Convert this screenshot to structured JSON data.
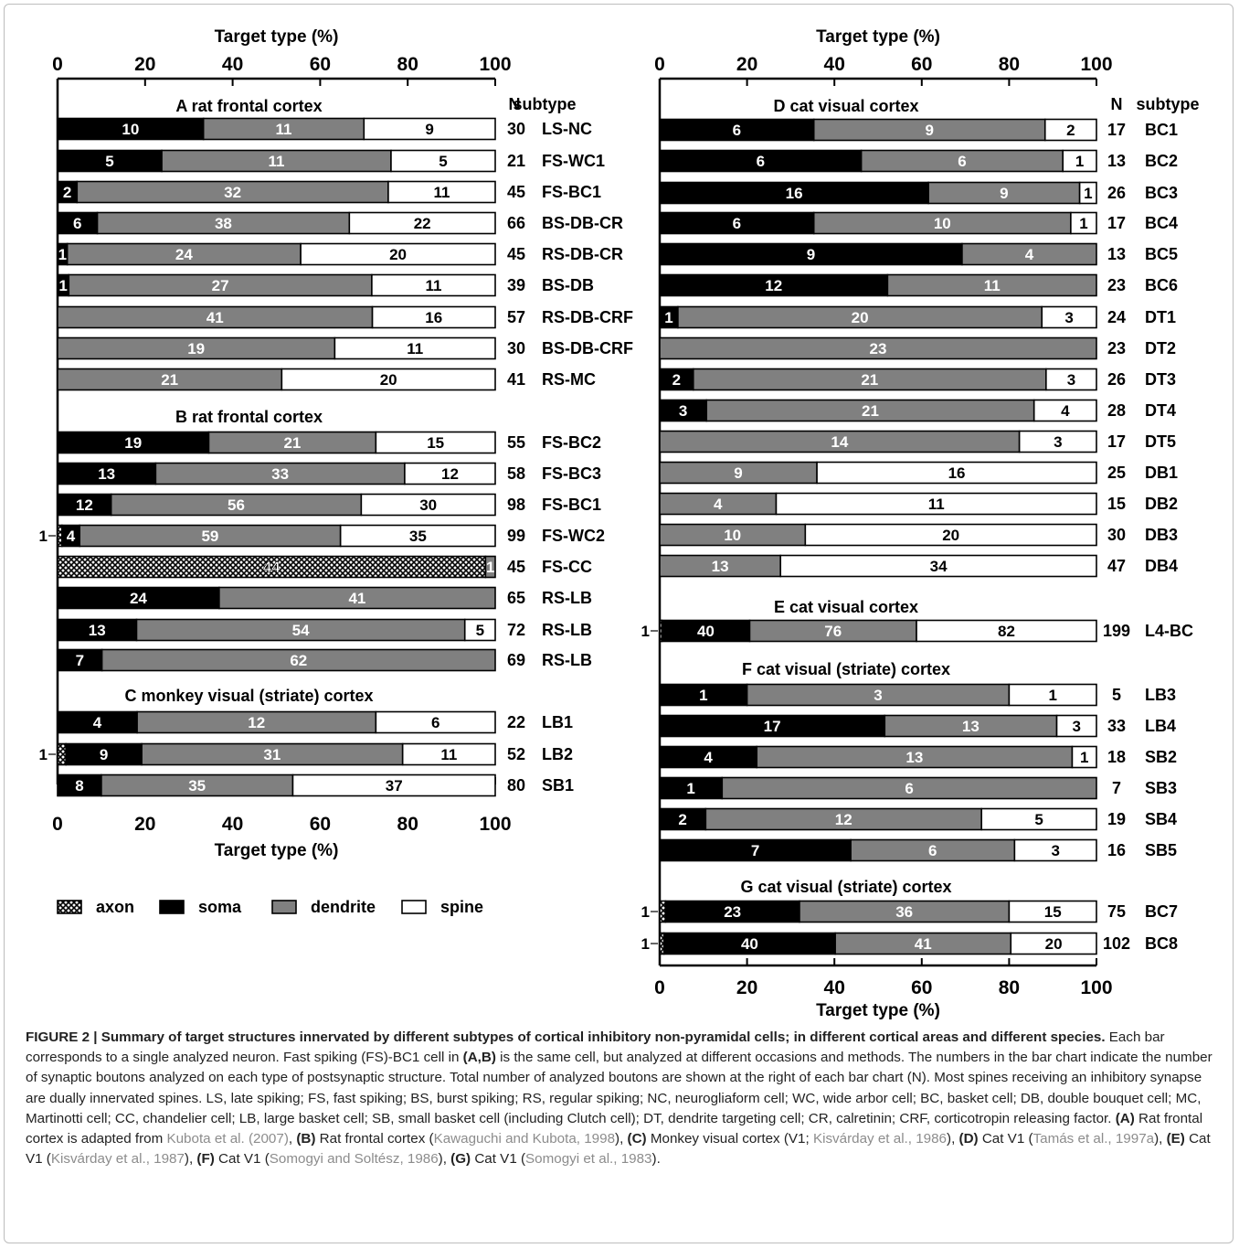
{
  "chart_data": [
    {
      "type": "bar",
      "stacked": true,
      "orientation": "horizontal",
      "xlabel": "Target type (%)",
      "xlim": [
        0,
        100
      ],
      "xticks": [
        0,
        20,
        40,
        60,
        80,
        100
      ],
      "header_n": "N",
      "header_subtype": "subtype",
      "panels": [
        {
          "letter": "A",
          "title": "rat frontal cortex",
          "rows": [
            {
              "subtype": "LS-NC",
              "n": 30,
              "axon": 0,
              "soma": 10,
              "dendrite": 11,
              "spine": 9
            },
            {
              "subtype": "FS-WC1",
              "n": 21,
              "axon": 0,
              "soma": 5,
              "dendrite": 11,
              "spine": 5
            },
            {
              "subtype": "FS-BC1",
              "n": 45,
              "axon": 0,
              "soma": 2,
              "dendrite": 32,
              "spine": 11
            },
            {
              "subtype": "BS-DB-CR",
              "n": 66,
              "axon": 0,
              "soma": 6,
              "dendrite": 38,
              "spine": 22
            },
            {
              "subtype": "RS-DB-CR",
              "n": 45,
              "axon": 0,
              "soma": 1,
              "dendrite": 24,
              "spine": 20
            },
            {
              "subtype": "BS-DB",
              "n": 39,
              "axon": 0,
              "soma": 1,
              "dendrite": 27,
              "spine": 11
            },
            {
              "subtype": "RS-DB-CRF",
              "n": 57,
              "axon": 0,
              "soma": 0,
              "dendrite": 41,
              "spine": 16
            },
            {
              "subtype": "BS-DB-CRF",
              "n": 30,
              "axon": 0,
              "soma": 0,
              "dendrite": 19,
              "spine": 11
            },
            {
              "subtype": "RS-MC",
              "n": 41,
              "axon": 0,
              "soma": 0,
              "dendrite": 21,
              "spine": 20
            }
          ]
        },
        {
          "letter": "B",
          "title": "rat frontal cortex",
          "rows": [
            {
              "subtype": "FS-BC2",
              "n": 55,
              "axon": 0,
              "soma": 19,
              "dendrite": 21,
              "spine": 15
            },
            {
              "subtype": "FS-BC3",
              "n": 58,
              "axon": 0,
              "soma": 13,
              "dendrite": 33,
              "spine": 12
            },
            {
              "subtype": "FS-BC1",
              "n": 98,
              "axon": 0,
              "soma": 12,
              "dendrite": 56,
              "spine": 30
            },
            {
              "subtype": "FS-WC2",
              "n": 99,
              "axon": 1,
              "soma": 4,
              "dendrite": 59,
              "spine": 35,
              "axon_label": "1"
            },
            {
              "subtype": "FS-CC",
              "n": 45,
              "axon": 44,
              "soma": 0,
              "dendrite": 1,
              "spine": 0
            },
            {
              "subtype": "RS-LB",
              "n": 65,
              "axon": 0,
              "soma": 24,
              "dendrite": 41,
              "spine": 0
            },
            {
              "subtype": "RS-LB",
              "n": 72,
              "axon": 0,
              "soma": 13,
              "dendrite": 54,
              "spine": 5
            },
            {
              "subtype": "RS-LB",
              "n": 69,
              "axon": 0,
              "soma": 7,
              "dendrite": 62,
              "spine": 0
            }
          ]
        },
        {
          "letter": "C",
          "title": "monkey visual (striate) cortex",
          "rows": [
            {
              "subtype": "LB1",
              "n": 22,
              "axon": 0,
              "soma": 4,
              "dendrite": 12,
              "spine": 6
            },
            {
              "subtype": "LB2",
              "n": 52,
              "axon": 1,
              "soma": 9,
              "dendrite": 31,
              "spine": 11,
              "axon_label": "1"
            },
            {
              "subtype": "SB1",
              "n": 80,
              "axon": 0,
              "soma": 8,
              "dendrite": 35,
              "spine": 37
            }
          ]
        },
        {
          "letter": "D",
          "title": "cat visual cortex",
          "rows": [
            {
              "subtype": "BC1",
              "n": 17,
              "axon": 0,
              "soma": 6,
              "dendrite": 9,
              "spine": 2
            },
            {
              "subtype": "BC2",
              "n": 13,
              "axon": 0,
              "soma": 6,
              "dendrite": 6,
              "spine": 1
            },
            {
              "subtype": "BC3",
              "n": 26,
              "axon": 0,
              "soma": 16,
              "dendrite": 9,
              "spine": 1
            },
            {
              "subtype": "BC4",
              "n": 17,
              "axon": 0,
              "soma": 6,
              "dendrite": 10,
              "spine": 1
            },
            {
              "subtype": "BC5",
              "n": 13,
              "axon": 0,
              "soma": 9,
              "dendrite": 4,
              "spine": 0
            },
            {
              "subtype": "BC6",
              "n": 23,
              "axon": 0,
              "soma": 12,
              "dendrite": 11,
              "spine": 0
            },
            {
              "subtype": "DT1",
              "n": 24,
              "axon": 0,
              "soma": 1,
              "dendrite": 20,
              "spine": 3
            },
            {
              "subtype": "DT2",
              "n": 23,
              "axon": 0,
              "soma": 0,
              "dendrite": 23,
              "spine": 0
            },
            {
              "subtype": "DT3",
              "n": 26,
              "axon": 0,
              "soma": 2,
              "dendrite": 21,
              "spine": 3
            },
            {
              "subtype": "DT4",
              "n": 28,
              "axon": 0,
              "soma": 3,
              "dendrite": 21,
              "spine": 4
            },
            {
              "subtype": "DT5",
              "n": 17,
              "axon": 0,
              "soma": 0,
              "dendrite": 14,
              "spine": 3
            },
            {
              "subtype": "DB1",
              "n": 25,
              "axon": 0,
              "soma": 0,
              "dendrite": 9,
              "spine": 16
            },
            {
              "subtype": "DB2",
              "n": 15,
              "axon": 0,
              "soma": 0,
              "dendrite": 4,
              "spine": 11
            },
            {
              "subtype": "DB3",
              "n": 30,
              "axon": 0,
              "soma": 0,
              "dendrite": 10,
              "spine": 20
            },
            {
              "subtype": "DB4",
              "n": 47,
              "axon": 0,
              "soma": 0,
              "dendrite": 13,
              "spine": 34
            }
          ]
        },
        {
          "letter": "E",
          "title": "cat visual cortex",
          "rows": [
            {
              "subtype": "L4-BC",
              "n": 199,
              "axon": 1,
              "soma": 40,
              "dendrite": 76,
              "spine": 82,
              "axon_label": "1"
            }
          ]
        },
        {
          "letter": "F",
          "title": "cat visual (striate) cortex",
          "rows": [
            {
              "subtype": "LB3",
              "n": 5,
              "axon": 0,
              "soma": 1,
              "dendrite": 3,
              "spine": 1
            },
            {
              "subtype": "LB4",
              "n": 33,
              "axon": 0,
              "soma": 17,
              "dendrite": 13,
              "spine": 3
            },
            {
              "subtype": "SB2",
              "n": 18,
              "axon": 0,
              "soma": 4,
              "dendrite": 13,
              "spine": 1
            },
            {
              "subtype": "SB3",
              "n": 7,
              "axon": 0,
              "soma": 1,
              "dendrite": 6,
              "spine": 0
            },
            {
              "subtype": "SB4",
              "n": 19,
              "axon": 0,
              "soma": 2,
              "dendrite": 12,
              "spine": 5
            },
            {
              "subtype": "SB5",
              "n": 16,
              "axon": 0,
              "soma": 7,
              "dendrite": 6,
              "spine": 3
            }
          ]
        },
        {
          "letter": "G",
          "title": "cat visual (striate) cortex",
          "rows": [
            {
              "subtype": "BC7",
              "n": 75,
              "axon": 1,
              "soma": 23,
              "dendrite": 36,
              "spine": 15,
              "axon_label": "1"
            },
            {
              "subtype": "BC8",
              "n": 102,
              "axon": 1,
              "soma": 40,
              "dendrite": 41,
              "spine": 20,
              "axon_label": "1"
            }
          ]
        }
      ],
      "legend": [
        {
          "key": "axon",
          "label": "axon",
          "color": "crosshatch"
        },
        {
          "key": "soma",
          "label": "soma",
          "color": "#000000"
        },
        {
          "key": "dendrite",
          "label": "dendrite",
          "color": "#808080"
        },
        {
          "key": "spine",
          "label": "spine",
          "color": "#ffffff"
        }
      ],
      "legend_position": "bottom-left"
    }
  ],
  "caption": {
    "title": "FIGURE 2 | Summary of target structures innervated by different subtypes of cortical inhibitory non-pyramidal cells; in different cortical areas and different species.",
    "s1": " Each bar corresponds to a single analyzed neuron. Fast spiking (FS)-BC1 cell in ",
    "b1": "(A,B)",
    "s2": " is the same cell, but analyzed at different occasions and methods. The numbers in the bar chart indicate the number of synaptic boutons analyzed on each type of postsynaptic structure. Total number of analyzed boutons are shown at the right of each bar chart (N). Most spines receiving an inhibitory synapse are dually innervated spines. LS, late spiking; FS, fast spiking; BS, burst spiking; RS, regular spiking; NC, neurogliaform cell; WC, wide arbor cell; BC, basket cell; DB, double bouquet cell; MC, Martinotti cell; CC, chandelier cell; LB, large basket cell; SB, small basket cell (including Clutch cell); DT, dendrite targeting cell; CR, calretinin; CRF, corticotropin releasing factor. ",
    "bA": "(A)",
    "s3": " Rat frontal cortex is adapted from ",
    "refA": "Kubota et al. (2007)",
    "s4": ", ",
    "bB": "(B)",
    "s5": " Rat frontal cortex (",
    "refB": "Kawaguchi and Kubota, 1998",
    "s6": "), ",
    "bC": "(C)",
    "s7": " Monkey visual cortex (V1; ",
    "refC": "Kisvárday et al., 1986",
    "s8": "), ",
    "bD": "(D)",
    "s9": " Cat V1 (",
    "refD": "Tamás et al., 1997a",
    "s10": "), ",
    "bE": "(E)",
    "s11": " Cat V1 (",
    "refE": "Kisvárday et al., 1987",
    "s12": "), ",
    "bF": "(F)",
    "s13": " Cat V1 (",
    "refF": "Somogyi and Soltész, 1986",
    "s14": "), ",
    "bG": "(G)",
    "s15": " Cat V1 (",
    "refG": "Somogyi et al., 1983",
    "s16": ")."
  }
}
